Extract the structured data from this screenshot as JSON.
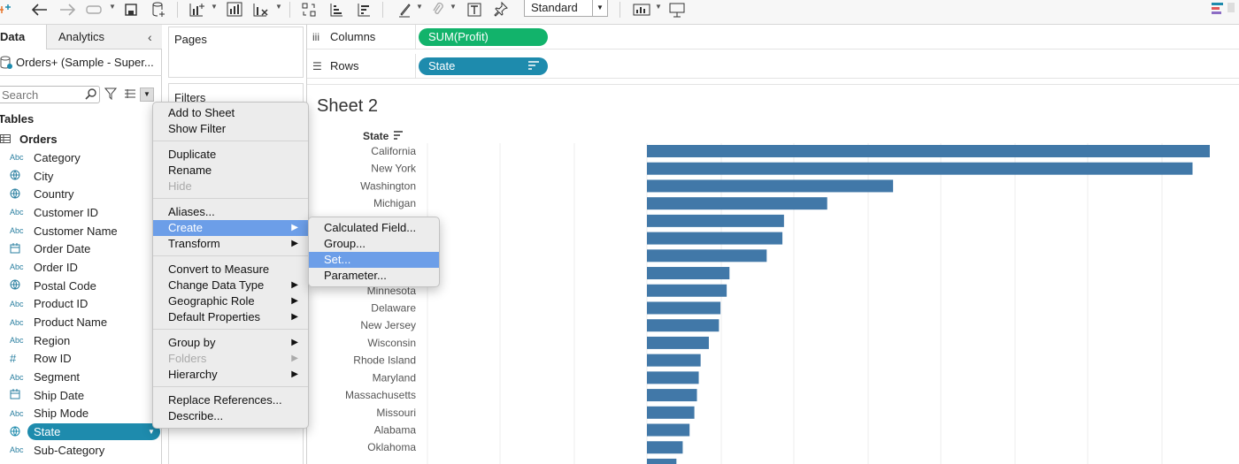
{
  "toolbar": {
    "mark_type_select": "Standard"
  },
  "data_pane": {
    "tab_data": "Data",
    "tab_analytics": "Analytics",
    "datasource": "Orders+ (Sample - Super...",
    "search_placeholder": "Search",
    "tables_heading": "Tables",
    "table_name": "Orders",
    "fields": [
      {
        "name": "Category",
        "type": "Abc"
      },
      {
        "name": "City",
        "type": "geo"
      },
      {
        "name": "Country",
        "type": "geo"
      },
      {
        "name": "Customer ID",
        "type": "Abc"
      },
      {
        "name": "Customer Name",
        "type": "Abc"
      },
      {
        "name": "Order Date",
        "type": "date"
      },
      {
        "name": "Order ID",
        "type": "Abc"
      },
      {
        "name": "Postal Code",
        "type": "geo"
      },
      {
        "name": "Product ID",
        "type": "Abc"
      },
      {
        "name": "Product Name",
        "type": "Abc"
      },
      {
        "name": "Region",
        "type": "Abc"
      },
      {
        "name": "Row ID",
        "type": "#"
      },
      {
        "name": "Segment",
        "type": "Abc"
      },
      {
        "name": "Ship Date",
        "type": "date"
      },
      {
        "name": "Ship Mode",
        "type": "Abc"
      },
      {
        "name": "State",
        "type": "geo",
        "selected": true
      },
      {
        "name": "Sub-Category",
        "type": "Abc"
      }
    ]
  },
  "cards": {
    "pages": "Pages",
    "filters": "Filters"
  },
  "shelves": {
    "columns_label": "Columns",
    "rows_label": "Rows",
    "columns_pill": "SUM(Profit)",
    "rows_pill": "State"
  },
  "sheet": {
    "title": "Sheet 2",
    "header": "State"
  },
  "chart_data": {
    "type": "bar",
    "orientation": "horizontal",
    "header": "State",
    "categories": [
      "California",
      "New York",
      "Washington",
      "Michigan",
      "",
      "",
      "",
      "",
      "Minnesota",
      "Delaware",
      "New Jersey",
      "Wisconsin",
      "Rhode Island",
      "Maryland",
      "Massachusetts",
      "Missouri",
      "Alabama",
      "Oklahoma",
      ""
    ],
    "values": [
      76381,
      74039,
      33403,
      24463,
      18598,
      18383,
      16251,
      11200,
      10823,
      9977,
      9773,
      8402,
      7286,
      7031,
      6786,
      6436,
      5787,
      4854,
      4000
    ],
    "xlim": [
      -90000,
      76381
    ],
    "bar_color": "#4178a8",
    "grid": "vertical"
  },
  "context_menu": {
    "items": [
      {
        "label": "Add to Sheet"
      },
      {
        "label": "Show Filter"
      },
      {
        "label": "Duplicate"
      },
      {
        "label": "Rename"
      },
      {
        "label": "Hide",
        "disabled": true
      },
      {
        "label": "Aliases..."
      },
      {
        "label": "Create",
        "submenu": true,
        "active": true
      },
      {
        "label": "Transform",
        "submenu": true
      },
      {
        "label": "Convert to Measure"
      },
      {
        "label": "Change Data Type",
        "submenu": true
      },
      {
        "label": "Geographic Role",
        "submenu": true
      },
      {
        "label": "Default Properties",
        "submenu": true
      },
      {
        "label": "Group by",
        "submenu": true
      },
      {
        "label": "Folders",
        "submenu": true,
        "disabled": true
      },
      {
        "label": "Hierarchy",
        "submenu": true
      },
      {
        "label": "Replace References..."
      },
      {
        "label": "Describe..."
      }
    ]
  },
  "sub_menu": {
    "items": [
      {
        "label": "Calculated Field..."
      },
      {
        "label": "Group..."
      },
      {
        "label": "Set...",
        "active": true
      },
      {
        "label": "Parameter..."
      }
    ]
  }
}
